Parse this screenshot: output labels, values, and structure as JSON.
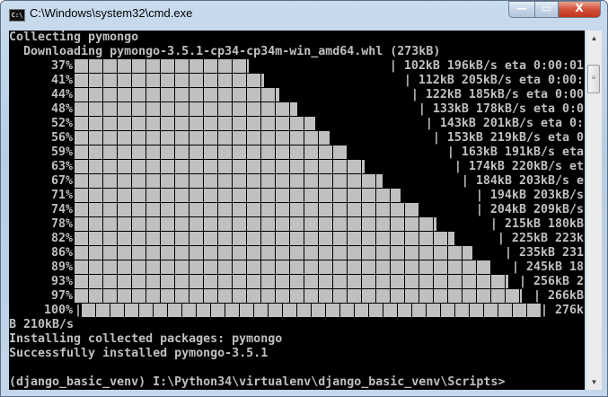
{
  "window": {
    "title": "C:\\Windows\\system32\\cmd.exe",
    "icon": "cmd-icon",
    "icon_text": "C:\\",
    "minimize": "—",
    "maximize": "▭",
    "close": "X"
  },
  "console": {
    "lines_top": [
      "Collecting pymongo",
      "  Downloading pymongo-3.5.1-cp34-cp34m-win_amd64.whl (273kB)"
    ],
    "progress": [
      {
        "percent": "37%",
        "info": "| 102kB 196kB/s eta 0:00:01"
      },
      {
        "percent": "41%",
        "info": "| 112kB 205kB/s eta 0:00:"
      },
      {
        "percent": "44%",
        "info": "| 122kB 185kB/s eta 0:00"
      },
      {
        "percent": "48%",
        "info": "| 133kB 178kB/s eta 0:0"
      },
      {
        "percent": "52%",
        "info": "| 143kB 201kB/s eta 0:"
      },
      {
        "percent": "56%",
        "info": "| 153kB 219kB/s eta 0"
      },
      {
        "percent": "59%",
        "info": "| 163kB 191kB/s eta"
      },
      {
        "percent": "63%",
        "info": "| 174kB 220kB/s et"
      },
      {
        "percent": "67%",
        "info": "| 184kB 203kB/s e"
      },
      {
        "percent": "71%",
        "info": "| 194kB 203kB/s"
      },
      {
        "percent": "74%",
        "info": "| 204kB 209kB/s"
      },
      {
        "percent": "78%",
        "info": "| 215kB 180kB"
      },
      {
        "percent": "82%",
        "info": "| 225kB 223k"
      },
      {
        "percent": "86%",
        "info": "| 235kB 231"
      },
      {
        "percent": "89%",
        "info": "| 245kB 18"
      },
      {
        "percent": "93%",
        "info": "| 256kB 2"
      },
      {
        "percent": "97%",
        "info": "| 266kB"
      },
      {
        "percent": "100%",
        "info": "| 276k"
      }
    ],
    "lines_bottom": [
      "B 210kB/s",
      "Installing collected packages: pymongo",
      "Successfully installed pymongo-3.5.1",
      "",
      "(django_basic_venv) I:\\Python34\\virtualenv\\django_basic_venv\\Scripts>"
    ]
  },
  "colors": {
    "console_bg": "#000000",
    "console_fg": "#c0c0c0"
  }
}
